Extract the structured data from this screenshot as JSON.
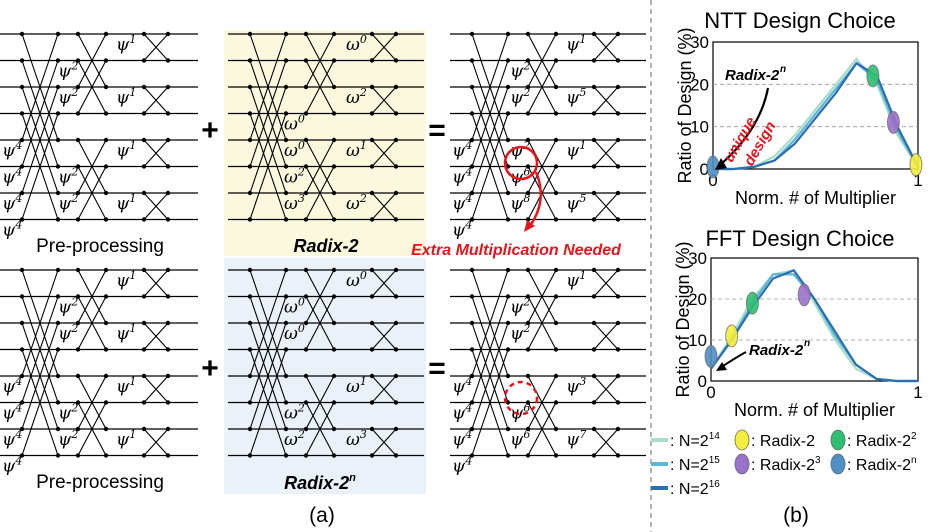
{
  "left_panel": {
    "caption": "(a)",
    "pre_processing_label": "Pre-processing",
    "radix2_label": "Radix-2",
    "radix2n_label": "Radix-2",
    "radix2n_sup": "n",
    "extra_label": "Extra Multiplication Needed",
    "plus": "+",
    "equals": "=",
    "psi": "ψ",
    "omega": "ω",
    "factors": {
      "pre_col1": [
        "4",
        "4",
        "4",
        "4"
      ],
      "pre_col2": [
        "2",
        "2",
        "2",
        "2"
      ],
      "pre_col3": [
        "1",
        "1",
        "1",
        "1"
      ],
      "radix2_top_w": [
        "0",
        "2",
        "0",
        "1",
        "0",
        "2",
        "3",
        "2"
      ],
      "radix2_result_mid": [
        "2",
        "2",
        "2",
        "6",
        "8"
      ],
      "radix2_result_right": [
        "1",
        "5",
        "1",
        "5"
      ],
      "radix2n_w": [
        "0",
        "0",
        "0",
        "1",
        "2",
        "2",
        "3"
      ],
      "radix2n_result_right": [
        "1",
        "3",
        "7"
      ],
      "radix2n_result_mid": [
        "2",
        "2",
        "6",
        "6"
      ]
    }
  },
  "right_panel": {
    "caption": "(b)",
    "legend": {
      "series": [
        {
          "base": "N=2",
          "exp": "14",
          "color": "#a9dcc9"
        },
        {
          "base": "N=2",
          "exp": "15",
          "color": "#5bb6d6"
        },
        {
          "base": "N=2",
          "exp": "16",
          "color": "#2b6fb0"
        }
      ],
      "markers": [
        {
          "label": "Radix-2",
          "exp": "",
          "color": "#f4ee3c"
        },
        {
          "label": "Radix-2",
          "exp": "2",
          "color": "#2fbf71"
        },
        {
          "label": "Radix-2",
          "exp": "3",
          "color": "#9b72c9"
        },
        {
          "label": "Radix-2",
          "exp": "n",
          "color": "#4f8fc4"
        }
      ],
      "sep": ": "
    }
  },
  "chart_data": [
    {
      "type": "line",
      "title": "NTT Design Choice",
      "xlabel": "Norm. # of Multiplier",
      "ylabel": "Ratio of Design (%)",
      "xlim": [
        0,
        1
      ],
      "ylim": [
        0,
        30
      ],
      "x_ticks": [
        "0",
        "1"
      ],
      "y_ticks": [
        "0",
        "10",
        "20",
        "30"
      ],
      "annotations": [
        "Radix-2",
        "n",
        "unique",
        "design"
      ],
      "series": [
        {
          "name": "N=2^14",
          "x": [
            0,
            0.1,
            0.2,
            0.3,
            0.4,
            0.5,
            0.6,
            0.7,
            0.8,
            0.9,
            1.0
          ],
          "values": [
            0,
            0,
            0.5,
            3,
            8,
            14,
            20,
            26,
            20,
            8,
            0.5
          ]
        },
        {
          "name": "N=2^15",
          "x": [
            0,
            0.1,
            0.2,
            0.3,
            0.4,
            0.5,
            0.6,
            0.7,
            0.8,
            0.9,
            1.0
          ],
          "values": [
            0,
            0,
            0.5,
            2,
            7,
            13,
            19,
            25,
            21,
            9,
            0.5
          ]
        },
        {
          "name": "N=2^16",
          "x": [
            0,
            0.1,
            0.2,
            0.3,
            0.4,
            0.5,
            0.6,
            0.7,
            0.8,
            0.9,
            1.0
          ],
          "values": [
            0,
            0,
            0.5,
            2,
            6,
            12,
            18,
            25,
            22,
            10,
            0.5
          ]
        }
      ],
      "markers": [
        {
          "name": "Radix-2^n",
          "x": 0.0,
          "y": 0.5
        },
        {
          "name": "Radix-2^2",
          "x": 0.78,
          "y": 22
        },
        {
          "name": "Radix-2^3",
          "x": 0.88,
          "y": 11
        },
        {
          "name": "Radix-2",
          "x": 0.99,
          "y": 1
        }
      ]
    },
    {
      "type": "line",
      "title": "FFT Design Choice",
      "xlabel": "Norm. # of Multiplier",
      "ylabel": "Ratio of Design (%)",
      "xlim": [
        0,
        1
      ],
      "ylim": [
        0,
        30
      ],
      "x_ticks": [
        "0",
        "1"
      ],
      "y_ticks": [
        "0",
        "10",
        "20",
        "30"
      ],
      "annotations": [
        "Radix-2",
        "n"
      ],
      "series": [
        {
          "name": "N=2^14",
          "x": [
            0,
            0.1,
            0.2,
            0.3,
            0.4,
            0.5,
            0.6,
            0.7,
            0.8,
            0.9,
            1.0
          ],
          "values": [
            3,
            11,
            20,
            26,
            27,
            19,
            10,
            3,
            0.5,
            0,
            0
          ]
        },
        {
          "name": "N=2^15",
          "x": [
            0,
            0.1,
            0.2,
            0.3,
            0.4,
            0.5,
            0.6,
            0.7,
            0.8,
            0.9,
            1.0
          ],
          "values": [
            3,
            10,
            19,
            26,
            26,
            20,
            11,
            4,
            0.5,
            0,
            0
          ]
        },
        {
          "name": "N=2^16",
          "x": [
            0,
            0.1,
            0.2,
            0.3,
            0.4,
            0.5,
            0.6,
            0.7,
            0.8,
            0.9,
            1.0
          ],
          "values": [
            3,
            10,
            18,
            25,
            27,
            20,
            12,
            4,
            0.5,
            0,
            0
          ]
        }
      ],
      "markers": [
        {
          "name": "Radix-2^n",
          "x": 0.0,
          "y": 6
        },
        {
          "name": "Radix-2",
          "x": 0.1,
          "y": 11
        },
        {
          "name": "Radix-2^2",
          "x": 0.2,
          "y": 19
        },
        {
          "name": "Radix-2^3",
          "x": 0.45,
          "y": 21
        }
      ]
    }
  ]
}
